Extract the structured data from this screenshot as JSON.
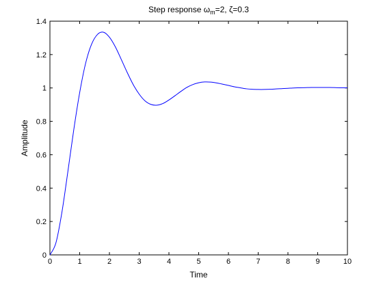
{
  "chart_data": {
    "type": "line",
    "title": {
      "prefix": "Step response ",
      "omega": "ω",
      "omega_sub": "m",
      "omega_value": "=2, ",
      "zeta": "ζ",
      "zeta_value": "=0.3"
    },
    "xlabel": "Time",
    "ylabel": "Amplitude",
    "xlim": [
      0,
      10
    ],
    "ylim": [
      0,
      1.4
    ],
    "xticks": [
      0,
      1,
      2,
      3,
      4,
      5,
      6,
      7,
      8,
      9,
      10
    ],
    "yticks": [
      0,
      0.2,
      0.4,
      0.6,
      0.8,
      1,
      1.2,
      1.4
    ],
    "xtick_labels": [
      "0",
      "1",
      "2",
      "3",
      "4",
      "5",
      "6",
      "7",
      "8",
      "9",
      "10"
    ],
    "ytick_labels": [
      "0",
      "0.2",
      "0.4",
      "0.6",
      "0.8",
      "1",
      "1.2",
      "1.4"
    ],
    "grid": false,
    "series": [
      {
        "color": "#0000ff",
        "x": [
          0,
          0.2,
          0.4,
          0.6,
          0.8,
          1.0,
          1.2,
          1.4,
          1.6,
          1.8,
          2.0,
          2.2,
          2.4,
          2.6,
          2.8,
          3.0,
          3.2,
          3.4,
          3.6,
          3.8,
          4.0,
          4.2,
          4.4,
          4.6,
          4.8,
          5.0,
          5.2,
          5.4,
          5.6,
          5.8,
          6.0,
          6.2,
          6.4,
          6.6,
          6.8,
          7.0,
          7.2,
          7.4,
          7.6,
          7.8,
          8.0,
          8.2,
          8.4,
          8.6,
          8.8,
          9.0,
          9.2,
          9.4,
          9.6,
          9.8,
          10.0
        ],
        "y": [
          0,
          0.071,
          0.252,
          0.495,
          0.748,
          0.972,
          1.148,
          1.262,
          1.321,
          1.334,
          1.304,
          1.246,
          1.17,
          1.092,
          1.02,
          0.963,
          0.922,
          0.901,
          0.897,
          0.907,
          0.928,
          0.953,
          0.979,
          1.003,
          1.02,
          1.031,
          1.036,
          1.035,
          1.03,
          1.023,
          1.015,
          1.007,
          1.001,
          0.995,
          0.992,
          0.991,
          0.991,
          0.992,
          0.994,
          0.996,
          0.998,
          1.0,
          1.001,
          1.002,
          1.003,
          1.003,
          1.003,
          1.003,
          1.002,
          1.001,
          1.001
        ]
      }
    ]
  }
}
